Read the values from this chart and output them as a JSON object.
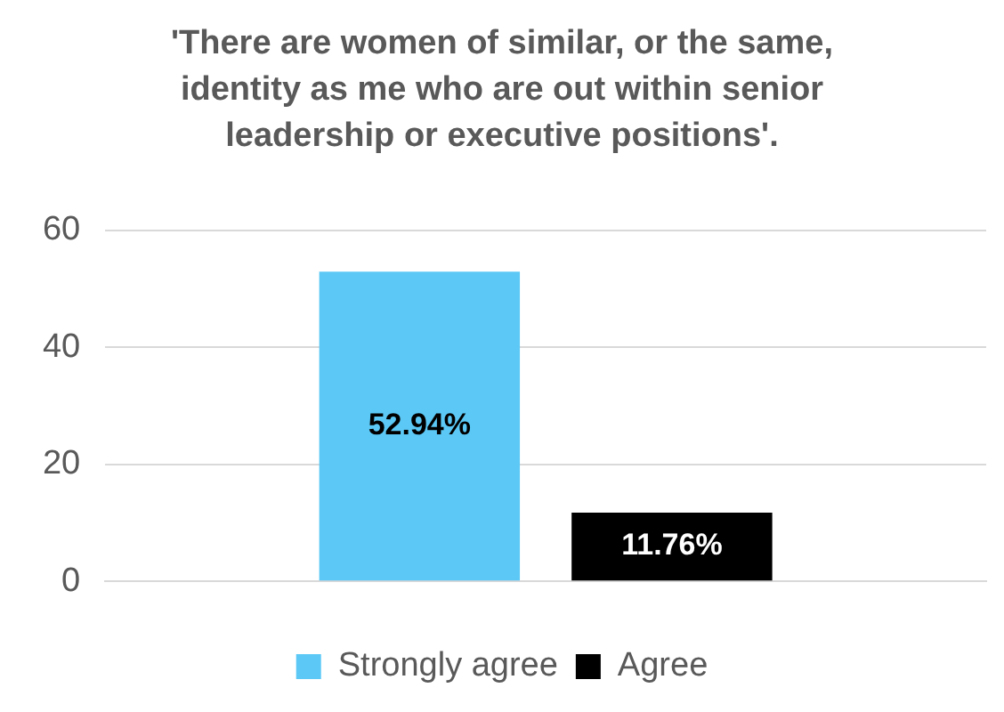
{
  "chart_data": {
    "type": "bar",
    "title": "'There are women of similar, or the same, identity as me who are out within senior leadership or executive positions'.",
    "categories": [
      null
    ],
    "series": [
      {
        "name": "Strongly agree",
        "color": "#5bc8f5",
        "values": [
          52.94
        ],
        "value_labels": [
          "52.94%"
        ]
      },
      {
        "name": "Agree",
        "color": "#000000",
        "values": [
          11.76
        ],
        "value_labels": [
          "11.76%"
        ]
      }
    ],
    "ylim": [
      0,
      60
    ],
    "yticks": [
      0,
      20,
      40,
      60
    ],
    "grid": "y",
    "legend": "bottom"
  }
}
